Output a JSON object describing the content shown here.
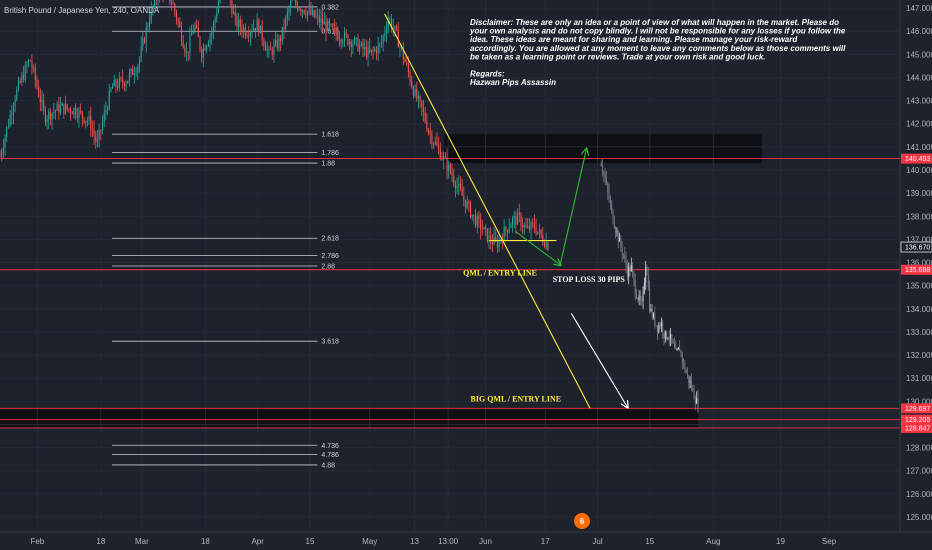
{
  "chart_data": {
    "type": "candlestick",
    "title": "British Pound / Japanese Yen, 240, OANDA",
    "y_axis": {
      "ticks": [
        "147.000",
        "146.000",
        "145.000",
        "144.000",
        "143.000",
        "142.000",
        "141.000",
        "140.000",
        "139.000",
        "138.000",
        "137.000",
        "136.000",
        "135.000",
        "134.000",
        "133.000",
        "132.000",
        "131.000",
        "130.000",
        "129.000",
        "128.000",
        "127.000",
        "126.000",
        "125.000"
      ],
      "ylim": [
        124.35,
        147.35
      ]
    },
    "x_axis": {
      "ticks": [
        {
          "label": "Feb",
          "t": 0
        },
        {
          "label": "18",
          "t": 17
        },
        {
          "label": "Mar",
          "t": 28
        },
        {
          "label": "18",
          "t": 45
        },
        {
          "label": "Apr",
          "t": 59
        },
        {
          "label": "15",
          "t": 73
        },
        {
          "label": "May",
          "t": 89
        },
        {
          "label": "13",
          "t": 101
        },
        {
          "label": "13:00",
          "t": 110
        },
        {
          "label": "Jun",
          "t": 120
        },
        {
          "label": "17",
          "t": 136
        },
        {
          "label": "Jul",
          "t": 150
        },
        {
          "label": "15",
          "t": 164
        },
        {
          "label": "Aug",
          "t": 181
        },
        {
          "label": "19",
          "t": 199
        },
        {
          "label": "Sep",
          "t": 212
        }
      ],
      "xlim": [
        -10,
        231
      ]
    },
    "fib_levels": [
      {
        "label": "0.382",
        "y": 147.05
      },
      {
        "label": "0.618",
        "y": 146.0
      },
      {
        "label": "1.618",
        "y": 141.55
      },
      {
        "label": "1.786",
        "y": 140.75
      },
      {
        "label": "1.88",
        "y": 140.3
      },
      {
        "label": "2.618",
        "y": 137.05
      },
      {
        "label": "2.786",
        "y": 136.3
      },
      {
        "label": "2.88",
        "y": 135.85
      },
      {
        "label": "3.618",
        "y": 132.6
      },
      {
        "label": "4.736",
        "y": 128.1
      },
      {
        "label": "4.786",
        "y": 127.7
      },
      {
        "label": "4.88",
        "y": 127.25
      }
    ],
    "price_tags": [
      {
        "label": "140.493",
        "y": 140.493,
        "color": "#f23645"
      },
      {
        "label": "136.670",
        "y": 136.67,
        "color": "#e0e3eb"
      },
      {
        "label": "135.688",
        "y": 135.688,
        "color": "#f23645"
      },
      {
        "label": "129.697",
        "y": 129.697,
        "color": "#f23645"
      },
      {
        "label": "129.205",
        "y": 129.205,
        "color": "#f23645"
      },
      {
        "label": "128.847",
        "y": 128.847,
        "color": "#f23645"
      }
    ],
    "zones": [
      {
        "t0": 109,
        "t1": 194,
        "y0": 140.3,
        "y1": 141.55,
        "fill": "#0e0f14"
      },
      {
        "t0": -10,
        "t1": 177,
        "y0": 128.847,
        "y1": 129.697,
        "fill": "#0e0f14"
      }
    ],
    "horizontal_lines": [
      {
        "y": 140.493,
        "color": "#f23645"
      },
      {
        "y": 135.688,
        "color": "#f23645"
      },
      {
        "y": 129.697,
        "color": "#f23645"
      },
      {
        "y": 129.205,
        "color": "#f23645"
      },
      {
        "y": 128.847,
        "color": "#f23645"
      }
    ],
    "trend_lines": [
      {
        "t0": 93,
        "y0": 146.75,
        "t1": 148,
        "y1": 129.7,
        "color": "#ffeb3b"
      },
      {
        "t0": 121,
        "y0": 136.95,
        "t1": 139,
        "y1": 136.95,
        "color": "#ffeb3b"
      },
      {
        "t0": 128,
        "y0": 137.35,
        "t1": 140,
        "y1": 135.9,
        "color": "#2ebd2e",
        "arrow": true
      },
      {
        "t0": 140,
        "y0": 135.9,
        "t1": 147,
        "y1": 140.9,
        "color": "#2ebd2e",
        "arrow": true
      },
      {
        "t0": 143,
        "y0": 133.8,
        "t1": 158,
        "y1": 129.75,
        "color": "#ffffff",
        "arrow": true
      }
    ],
    "price_path": {
      "t": [
        -10,
        -6,
        -2,
        2,
        6,
        10,
        14,
        16,
        18,
        20,
        24,
        27,
        30,
        33,
        36,
        38,
        40,
        42,
        44,
        47,
        50,
        53,
        56,
        59,
        62,
        65,
        68,
        72,
        76,
        80,
        85,
        89,
        92,
        94,
        96,
        99,
        101,
        103,
        105,
        107,
        109,
        111,
        113,
        115,
        117,
        119,
        121,
        123,
        125,
        127,
        129,
        131,
        133,
        135,
        137
      ],
      "y": [
        140.6,
        143.2,
        144.8,
        142.3,
        142.7,
        142.6,
        142.1,
        141.1,
        142.4,
        143.6,
        143.9,
        144.6,
        146.6,
        148.0,
        147.3,
        146.2,
        145.0,
        146.3,
        145.1,
        146.1,
        148.5,
        146.4,
        146.0,
        146.3,
        145.0,
        145.6,
        147.3,
        146.9,
        146.4,
        145.9,
        145.5,
        145.0,
        145.4,
        146.6,
        145.9,
        144.4,
        143.3,
        142.6,
        141.6,
        141.0,
        140.4,
        139.8,
        139.1,
        138.5,
        137.9,
        137.5,
        137.0,
        136.8,
        137.3,
        137.8,
        137.9,
        137.4,
        137.6,
        137.1,
        136.7
      ]
    },
    "projection_path": {
      "t": [
        151,
        152,
        153,
        154,
        155,
        156,
        157,
        158,
        159,
        160,
        161,
        162,
        163,
        164,
        165,
        166,
        167,
        168,
        169,
        170,
        171,
        172,
        173,
        174,
        175,
        176,
        177
      ],
      "y": [
        140.3,
        139.6,
        138.8,
        138.0,
        137.4,
        136.8,
        136.3,
        135.6,
        135.8,
        134.9,
        134.4,
        134.1,
        136.2,
        134.0,
        133.6,
        133.2,
        133.4,
        132.8,
        132.9,
        132.5,
        132.0,
        132.3,
        131.6,
        131.1,
        130.7,
        130.2,
        129.8
      ]
    },
    "annotations": [
      {
        "text": "QML / ENTRY LINE",
        "t": 114,
        "y": 135.45,
        "color": "#ffeb3b"
      },
      {
        "text": "STOP LOSS 30 PIPS",
        "t": 138,
        "y": 135.15,
        "color": "#ffffff"
      },
      {
        "text": "BIG QML / ENTRY LINE",
        "t": 116,
        "y": 130.0,
        "color": "#ffeb3b"
      }
    ],
    "disclaimer_lines": [
      "Disclaimer: These are only an idea or a point of view of what will happen in the market. Please do",
      "your own analysis and do not copy blindly. I will not be responsible for any losses if you follow the",
      "idea. These ideas are meant for sharing and learning. Please manage your risk-reward",
      "accordingly. You are allowed at any moment to leave any comments below as those comments will",
      "be taken as a learning point or reviews. Trade at your own risk and good luck.",
      "",
      "Regards:",
      "Hazwan Pips Assassin"
    ],
    "colors": {
      "up": "#26a69a",
      "down": "#ef5350",
      "background": "#1e222d"
    }
  },
  "logo_text": "6"
}
